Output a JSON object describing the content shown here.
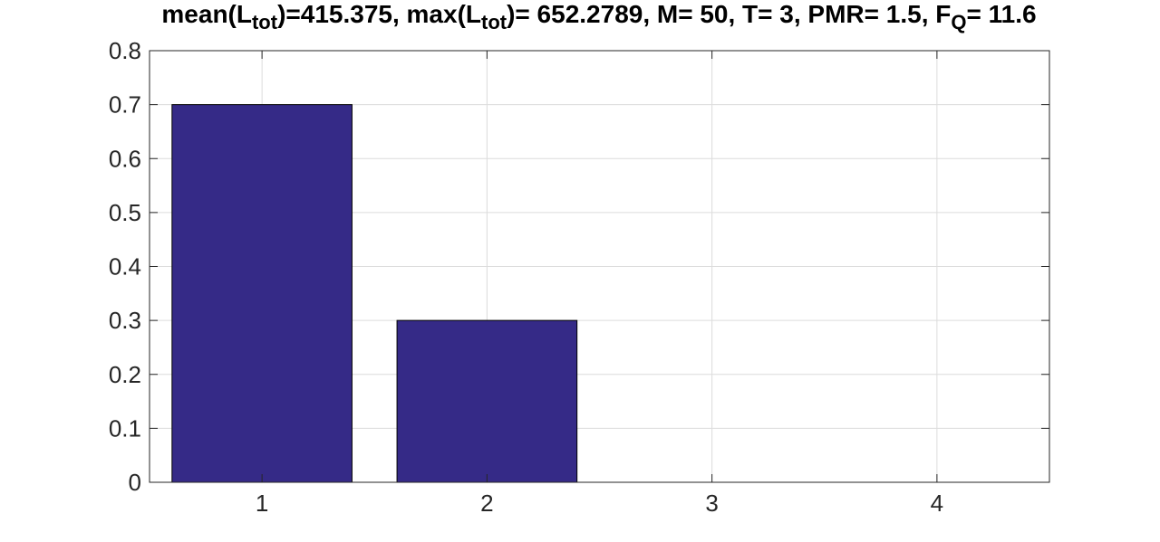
{
  "chart_data": {
    "type": "bar",
    "title_parts": [
      {
        "text": "mean(L"
      },
      {
        "text": "tot",
        "sub": true
      },
      {
        "text": ")=415.375, max(L"
      },
      {
        "text": "tot",
        "sub": true
      },
      {
        "text": ")= 652.2789, M= 50, T= 3, PMR= 1.5, F"
      },
      {
        "text": "Q",
        "sub": true
      },
      {
        "text": "= 11.6"
      }
    ],
    "categories": [
      "1",
      "2",
      "3",
      "4"
    ],
    "values": [
      0.7,
      0.3,
      0,
      0
    ],
    "xlim": [
      0.5,
      4.5
    ],
    "ylim": [
      0,
      0.8
    ],
    "yticks": [
      "0",
      "0.1",
      "0.2",
      "0.3",
      "0.4",
      "0.5",
      "0.6",
      "0.7",
      "0.8"
    ],
    "grid": true,
    "bar_color": "#352a87",
    "bar_edge_color": "#000000",
    "xlabel": "",
    "ylabel": ""
  }
}
